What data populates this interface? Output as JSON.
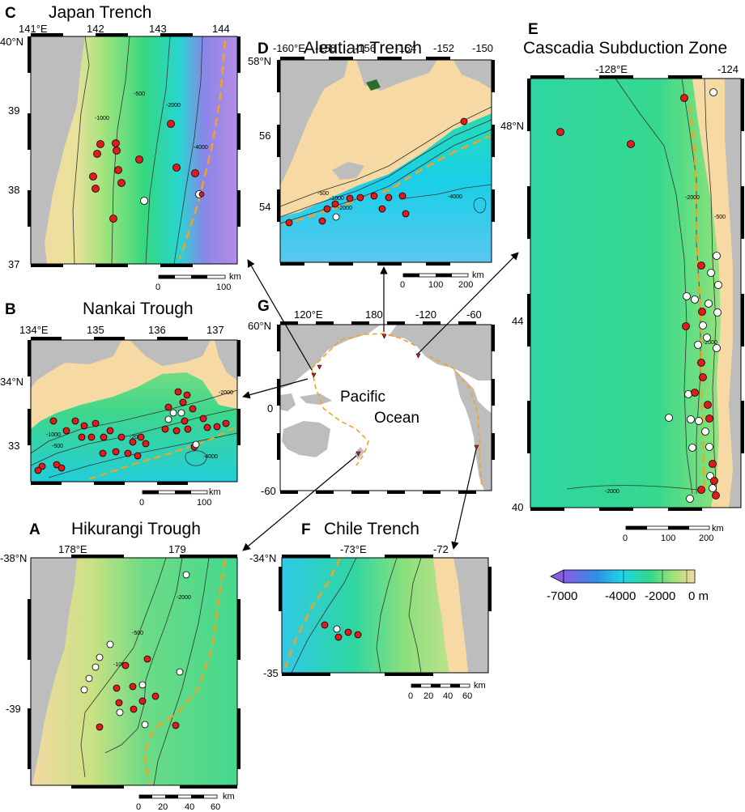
{
  "panels": {
    "C": {
      "letter": "C",
      "title": "Japan Trench",
      "xticks": [
        "141°E",
        "142",
        "143",
        "144"
      ],
      "yticks": [
        "40°N",
        "39",
        "38",
        "37"
      ],
      "contours": [
        "-500",
        "-1000",
        "-2000",
        "-4000"
      ],
      "scale": [
        "0",
        "100",
        "km"
      ]
    },
    "D": {
      "letter": "D",
      "title": "Aleutian Trench",
      "xticks": [
        "-160°E",
        "-158",
        "-156",
        "-154",
        "-152",
        "-150"
      ],
      "yticks": [
        "58°N",
        "56",
        "54"
      ],
      "contours": [
        "-500",
        "-1000",
        "-2000",
        "-4000"
      ],
      "scale": [
        "0",
        "100",
        "200",
        "km"
      ]
    },
    "E": {
      "letter": "E",
      "title": "Cascadia Subduction Zone",
      "xticks": [
        "-128°E",
        "-124"
      ],
      "yticks": [
        "48°N",
        "44",
        "40"
      ],
      "contours": [
        "-500",
        "-2000",
        "-2000",
        "-2000"
      ],
      "scale": [
        "0",
        "100",
        "200",
        "km"
      ]
    },
    "B": {
      "letter": "B",
      "title": "Nankai Trough",
      "xticks": [
        "134°E",
        "135",
        "136",
        "137"
      ],
      "yticks": [
        "34°N",
        "33"
      ],
      "contours": [
        "-500",
        "-1000",
        "-2000",
        "-2000",
        "-4000"
      ],
      "scale": [
        "0",
        "100",
        "km"
      ]
    },
    "G": {
      "letter": "G",
      "title": "",
      "label_line1": "Pacific",
      "label_line2": "Ocean",
      "xticks": [
        "120°E",
        "180",
        "-120",
        "-60"
      ],
      "yticks": [
        "60°N",
        "0",
        "-60"
      ]
    },
    "A": {
      "letter": "A",
      "title": "Hikurangi Trough",
      "xticks": [
        "178°E",
        "179"
      ],
      "yticks": [
        "-38°N",
        "-39"
      ],
      "contours": [
        "-500",
        "-1000",
        "-2000"
      ],
      "scale": [
        "0",
        "20",
        "40",
        "60",
        "km"
      ]
    },
    "F": {
      "letter": "F",
      "title": "Chile Trench",
      "xticks": [
        "-73°E",
        "-72"
      ],
      "yticks": [
        "-34°N",
        "-35"
      ],
      "scale": [
        "0",
        "20",
        "40",
        "60",
        "km"
      ]
    }
  },
  "colorbar": {
    "labels": [
      "-7000",
      "-4000",
      "-2000",
      "0 m"
    ]
  },
  "colors": {
    "land": "#bdbdbd",
    "shelf": "#f6d9a3",
    "trench": "#f2a324",
    "site_red": "#e31a1c",
    "site_white": "#ffffff"
  }
}
